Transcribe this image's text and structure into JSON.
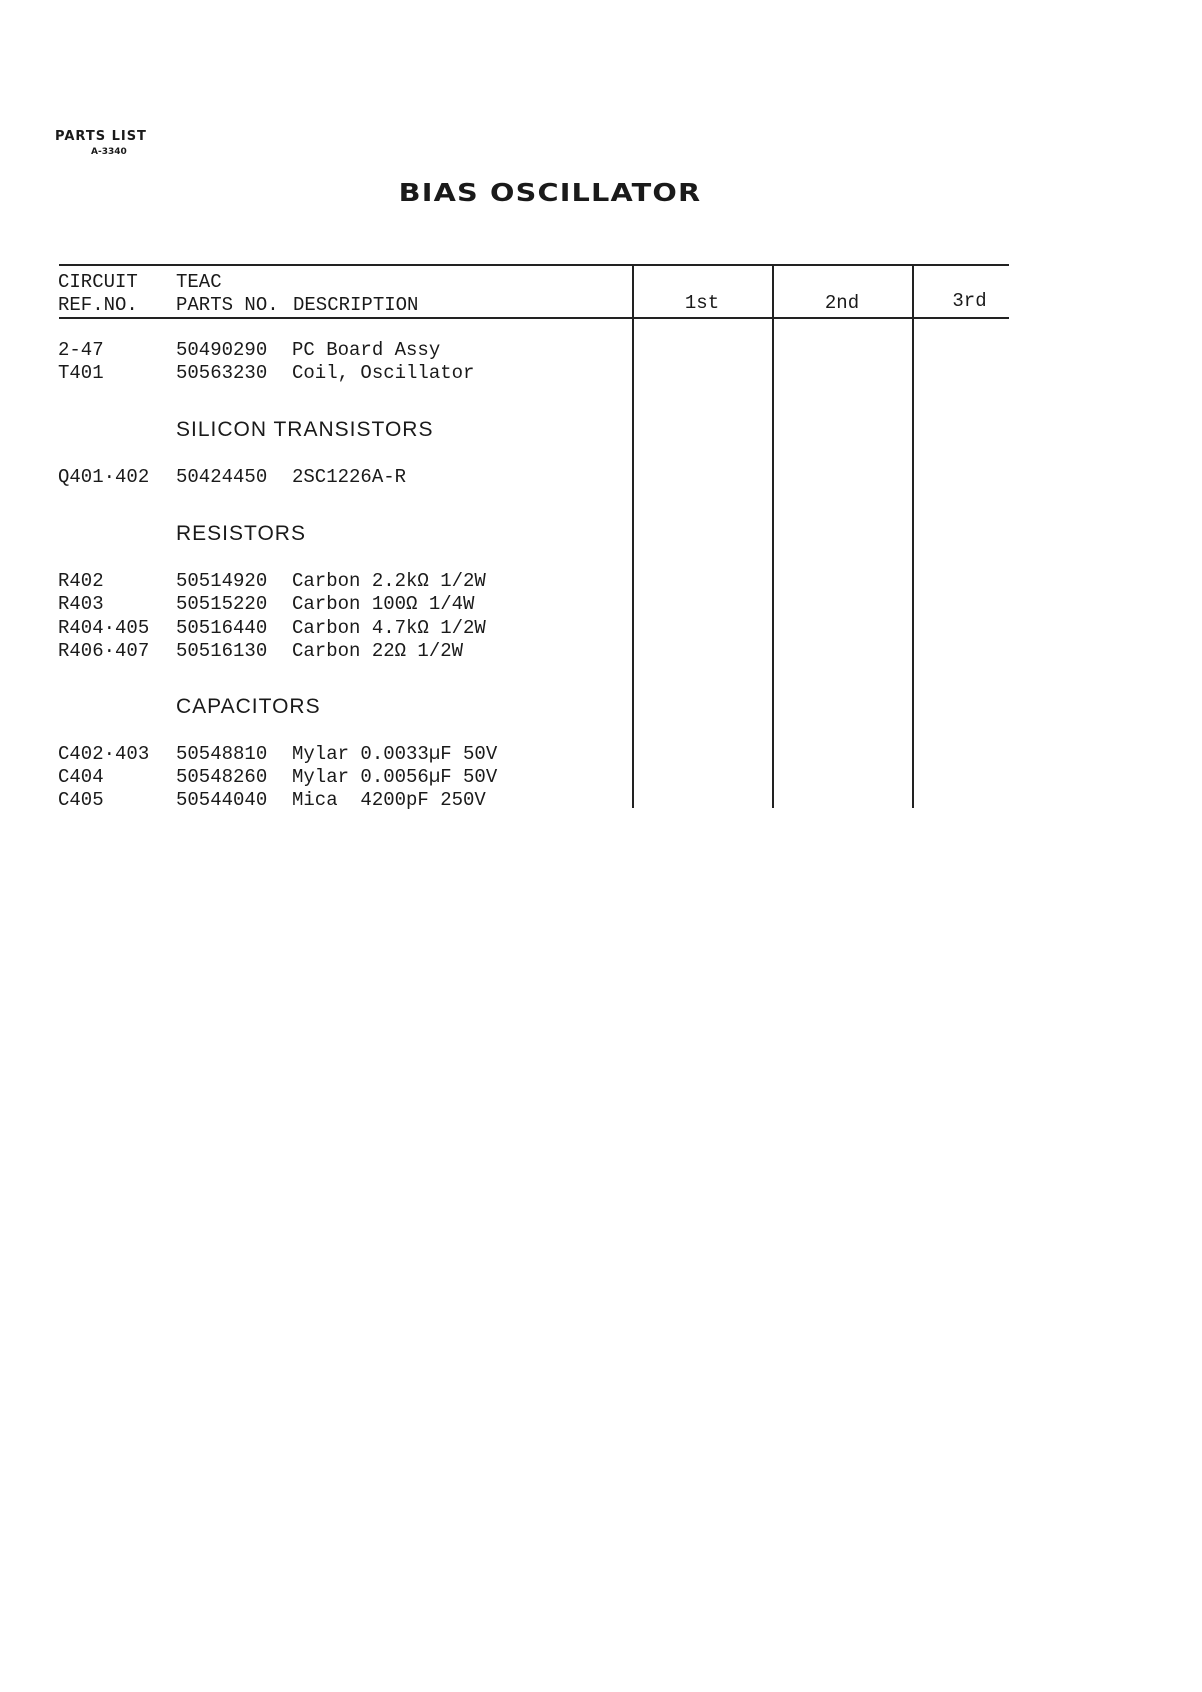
{
  "header": {
    "label": "PARTS LIST",
    "code": "A-3340",
    "title": "BIAS OSCILLATOR"
  },
  "table": {
    "columns": {
      "ref": [
        "CIRCUIT",
        "REF.NO."
      ],
      "parts": [
        "TEAC",
        "PARTS NO."
      ],
      "description": "DESCRIPTION",
      "first": "1st",
      "second": "2nd",
      "third": "3rd"
    },
    "rows": [
      {
        "ref": "2-47",
        "part": "50490290",
        "desc": "PC Board Assy"
      },
      {
        "ref": "T401",
        "part": "50563230",
        "desc": "Coil, Oscillator"
      },
      {
        "section": "SILICON TRANSISTORS"
      },
      {
        "ref": "Q401·402",
        "part": "50424450",
        "desc": "2SC1226A-R"
      },
      {
        "section": "RESISTORS"
      },
      {
        "ref": "R402",
        "part": "50514920",
        "desc": "Carbon 2.2kΩ 1/2W"
      },
      {
        "ref": "R403",
        "part": "50515220",
        "desc": "Carbon 100Ω 1/4W"
      },
      {
        "ref": "R404·405",
        "part": "50516440",
        "desc": "Carbon 4.7kΩ 1/2W"
      },
      {
        "ref": "R406·407",
        "part": "50516130",
        "desc": "Carbon 22Ω 1/2W"
      },
      {
        "section": "CAPACITORS"
      },
      {
        "ref": "C402·403",
        "part": "50548810",
        "desc": "Mylar 0.0033µF 50V"
      },
      {
        "ref": "C404",
        "part": "50548260",
        "desc": "Mylar 0.0056µF 50V"
      },
      {
        "ref": "C405",
        "part": "50544040",
        "desc": "Mica  4200pF 250V"
      }
    ]
  }
}
